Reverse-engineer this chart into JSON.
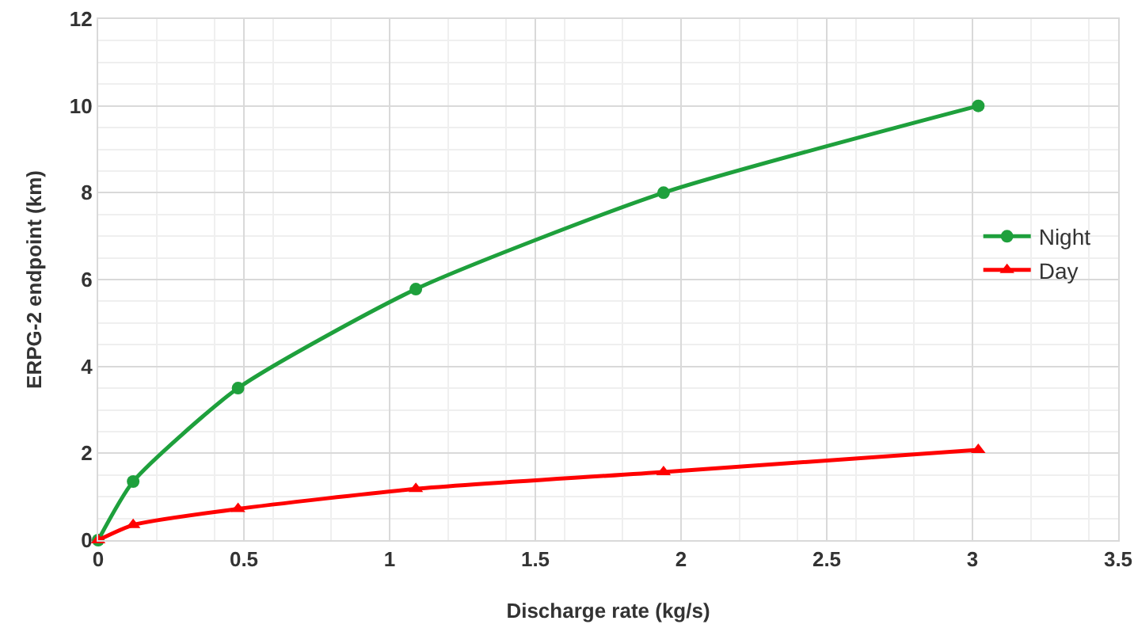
{
  "chart_data": {
    "type": "line",
    "xlabel": "Discharge rate (kg/s)",
    "ylabel": "ERPG-2 endpoint (km)",
    "x": [
      0,
      0.12,
      0.48,
      1.09,
      1.94,
      3.02
    ],
    "series": [
      {
        "name": "Night",
        "color": "#1ea03c",
        "values": [
          0,
          1.35,
          3.5,
          5.78,
          8.0,
          10.0
        ],
        "marker": "circle"
      },
      {
        "name": "Day",
        "color": "#ff0000",
        "values": [
          0,
          0.35,
          0.72,
          1.18,
          1.57,
          2.08
        ],
        "marker": "triangle"
      }
    ],
    "xlim": [
      0,
      3.5
    ],
    "xticks": [
      0,
      0.5,
      1,
      1.5,
      2,
      2.5,
      3,
      3.5
    ],
    "ylim": [
      0,
      12
    ],
    "yticks": [
      0,
      2,
      4,
      6,
      8,
      10,
      12
    ],
    "grid": true,
    "legend": "right",
    "line_style": "solid"
  }
}
